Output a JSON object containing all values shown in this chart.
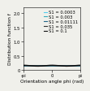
{
  "title": "",
  "xlabel": "Orientation angle phi (rad)",
  "ylabel": "Distribution function f",
  "xlim": [
    -3.14159,
    3.14159
  ],
  "ylim": [
    0,
    2.2
  ],
  "yticks": [
    0.0,
    0.5,
    1.0,
    1.5,
    2.0
  ],
  "xticks": [
    -3.14159,
    0,
    3.14159
  ],
  "xticklabels": [
    "-pi",
    "0",
    "pi"
  ],
  "curves": [
    {
      "label": "S1 = 0.0003",
      "S": 0.0003,
      "color": "#55ccee",
      "lw": 1.0
    },
    {
      "label": "S1 = 0.003",
      "S": 0.003,
      "color": "#33aabb",
      "lw": 1.0
    },
    {
      "label": "S1 = 0.01111",
      "S": 0.01111,
      "color": "#226688",
      "lw": 1.0
    },
    {
      "label": "S1 = 0.035",
      "S": 0.035,
      "color": "#333333",
      "lw": 1.0
    },
    {
      "label": "S1 = 0.1",
      "S": 0.1,
      "color": "#111111",
      "lw": 1.0
    }
  ],
  "background_color": "#f0f0eb",
  "legend_fontsize": 3.8,
  "axis_fontsize": 4.2,
  "tick_fontsize": 3.8
}
